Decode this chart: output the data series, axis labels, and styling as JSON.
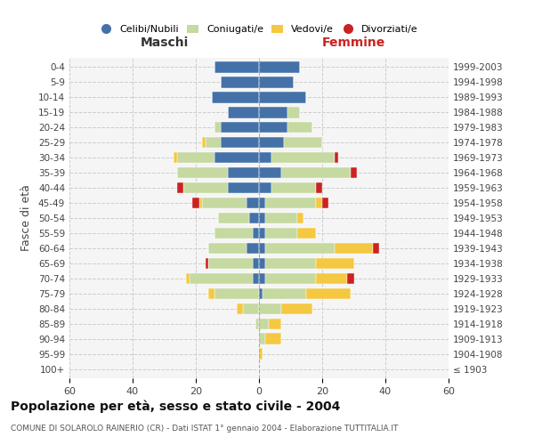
{
  "age_groups": [
    "100+",
    "95-99",
    "90-94",
    "85-89",
    "80-84",
    "75-79",
    "70-74",
    "65-69",
    "60-64",
    "55-59",
    "50-54",
    "45-49",
    "40-44",
    "35-39",
    "30-34",
    "25-29",
    "20-24",
    "15-19",
    "10-14",
    "5-9",
    "0-4"
  ],
  "birth_years": [
    "≤ 1903",
    "1904-1908",
    "1909-1913",
    "1914-1918",
    "1919-1923",
    "1924-1928",
    "1929-1933",
    "1934-1938",
    "1939-1943",
    "1944-1948",
    "1949-1953",
    "1954-1958",
    "1959-1963",
    "1964-1968",
    "1969-1973",
    "1974-1978",
    "1979-1983",
    "1984-1988",
    "1989-1993",
    "1994-1998",
    "1999-2003"
  ],
  "male": {
    "celibi": [
      0,
      0,
      0,
      0,
      0,
      0,
      2,
      2,
      4,
      2,
      3,
      4,
      10,
      10,
      14,
      12,
      12,
      10,
      15,
      12,
      14
    ],
    "coniugati": [
      0,
      0,
      0,
      1,
      5,
      14,
      20,
      14,
      12,
      12,
      10,
      14,
      14,
      16,
      12,
      5,
      2,
      0,
      0,
      0,
      0
    ],
    "vedovi": [
      0,
      0,
      0,
      0,
      2,
      2,
      1,
      0,
      0,
      0,
      0,
      1,
      0,
      0,
      1,
      1,
      0,
      0,
      0,
      0,
      0
    ],
    "divorziati": [
      0,
      0,
      0,
      0,
      0,
      0,
      0,
      1,
      0,
      0,
      0,
      2,
      2,
      0,
      0,
      0,
      0,
      0,
      0,
      0,
      0
    ]
  },
  "female": {
    "nubili": [
      0,
      0,
      0,
      0,
      0,
      1,
      2,
      2,
      2,
      2,
      2,
      2,
      4,
      7,
      4,
      8,
      9,
      9,
      15,
      11,
      13
    ],
    "coniugate": [
      0,
      0,
      2,
      3,
      7,
      14,
      16,
      16,
      22,
      10,
      10,
      16,
      14,
      22,
      20,
      12,
      8,
      4,
      0,
      0,
      0
    ],
    "vedove": [
      0,
      1,
      5,
      4,
      10,
      14,
      10,
      12,
      12,
      6,
      2,
      2,
      0,
      0,
      0,
      0,
      0,
      0,
      0,
      0,
      0
    ],
    "divorziate": [
      0,
      0,
      0,
      0,
      0,
      0,
      2,
      0,
      2,
      0,
      0,
      2,
      2,
      2,
      1,
      0,
      0,
      0,
      0,
      0,
      0
    ]
  },
  "colors": {
    "celibi": "#4472a8",
    "coniugati": "#c5d9a0",
    "vedovi": "#f5c842",
    "divorziati": "#cc2222"
  },
  "title": "Popolazione per età, sesso e stato civile - 2004",
  "subtitle": "COMUNE DI SOLAROLO RAINERIO (CR) - Dati ISTAT 1° gennaio 2004 - Elaborazione TUTTITALIA.IT",
  "ylabel": "Fasce di età",
  "xlim": 60,
  "background_color": "#ffffff",
  "grid_color": "#cccccc",
  "maschi_label": "Maschi",
  "femmine_label": "Femmine"
}
